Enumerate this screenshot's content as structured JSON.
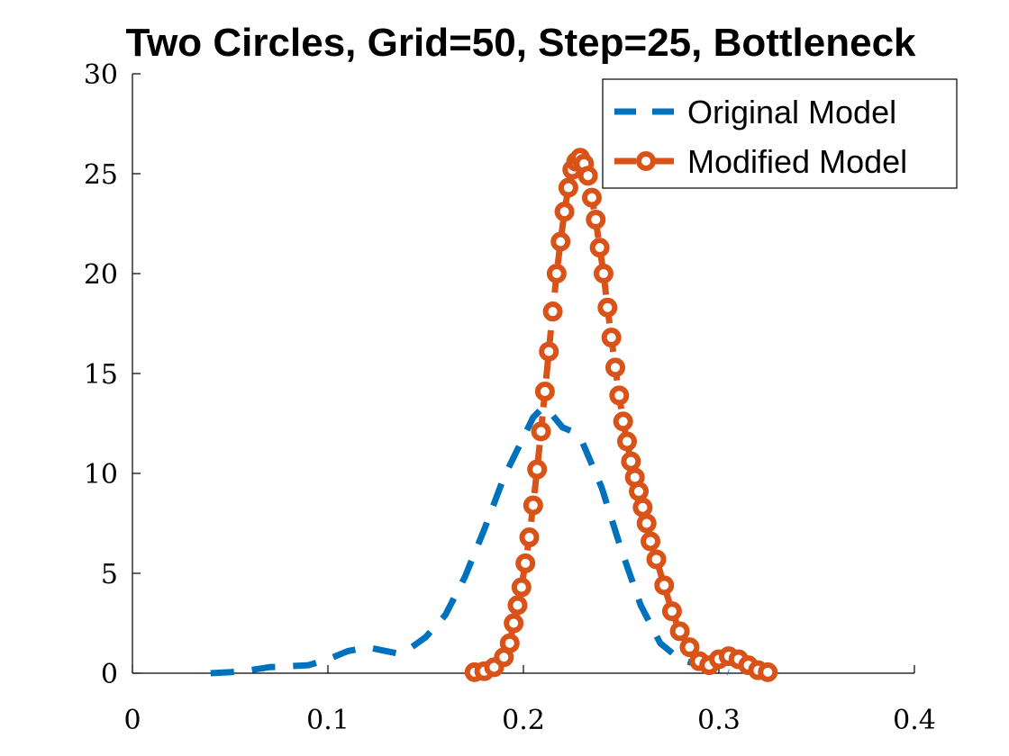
{
  "chart_data": {
    "type": "line",
    "title": "Two Circles, Grid=50, Step=25, Bottleneck",
    "xlabel": "",
    "ylabel": "",
    "xlim": [
      0,
      0.4
    ],
    "ylim": [
      0,
      30
    ],
    "x_ticks": [
      "0",
      "0.1",
      "0.2",
      "0.3",
      "0.4"
    ],
    "y_ticks": [
      "0",
      "5",
      "10",
      "15",
      "20",
      "25",
      "30"
    ],
    "grid": false,
    "legend_position": "top-right",
    "series": [
      {
        "name": "Original Model",
        "color": "#0072BD",
        "style": "dashed",
        "marker": "none",
        "x": [
          0.04,
          0.05,
          0.06,
          0.07,
          0.08,
          0.09,
          0.1,
          0.11,
          0.12,
          0.13,
          0.135,
          0.14,
          0.15,
          0.16,
          0.17,
          0.18,
          0.19,
          0.2,
          0.205,
          0.21,
          0.215,
          0.22,
          0.225,
          0.23,
          0.24,
          0.25,
          0.26,
          0.27,
          0.28,
          0.29,
          0.3,
          0.305
        ],
        "y": [
          0,
          0.05,
          0.15,
          0.3,
          0.35,
          0.4,
          0.7,
          1.1,
          1.3,
          1.1,
          1.0,
          1.1,
          1.8,
          2.9,
          4.8,
          7.2,
          9.8,
          11.8,
          12.8,
          13.3,
          12.9,
          12.3,
          12.1,
          11.6,
          9.3,
          6.2,
          3.4,
          1.5,
          0.7,
          0.4,
          0.2,
          0.05
        ]
      },
      {
        "name": "Modified Model",
        "color": "#D95319",
        "style": "dashed",
        "marker": "circle",
        "x": [
          0.175,
          0.18,
          0.185,
          0.19,
          0.193,
          0.195,
          0.197,
          0.199,
          0.201,
          0.203,
          0.205,
          0.207,
          0.209,
          0.211,
          0.213,
          0.215,
          0.217,
          0.219,
          0.221,
          0.223,
          0.225,
          0.227,
          0.229,
          0.231,
          0.233,
          0.235,
          0.237,
          0.239,
          0.241,
          0.243,
          0.245,
          0.247,
          0.249,
          0.251,
          0.253,
          0.255,
          0.257,
          0.259,
          0.261,
          0.263,
          0.265,
          0.268,
          0.272,
          0.276,
          0.28,
          0.285,
          0.29,
          0.295,
          0.3,
          0.305,
          0.31,
          0.315,
          0.32,
          0.325
        ],
        "y": [
          0.05,
          0.1,
          0.3,
          0.8,
          1.5,
          2.5,
          3.4,
          4.3,
          5.5,
          6.8,
          8.4,
          10.2,
          12.1,
          14.1,
          16.1,
          18.1,
          20.0,
          21.6,
          23.1,
          24.3,
          25.2,
          25.6,
          25.8,
          25.5,
          24.9,
          23.8,
          22.7,
          21.3,
          20.0,
          18.3,
          16.8,
          15.3,
          13.9,
          12.6,
          11.6,
          10.6,
          9.8,
          9.1,
          8.3,
          7.5,
          6.6,
          5.7,
          4.4,
          3.1,
          2.1,
          1.3,
          0.6,
          0.4,
          0.7,
          0.85,
          0.7,
          0.4,
          0.15,
          0.05
        ]
      }
    ]
  }
}
